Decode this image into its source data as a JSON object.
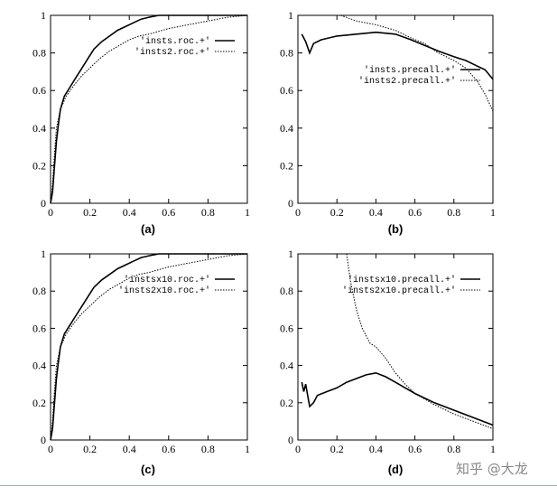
{
  "chart_data": [
    {
      "type": "line",
      "panel_label": "(a)",
      "xlim": [
        0,
        1
      ],
      "ylim": [
        0,
        1
      ],
      "xticks": [
        "0",
        "0.2",
        "0.4",
        "0.6",
        "0.8",
        "1"
      ],
      "yticks": [
        "0",
        "0.2",
        "0.4",
        "0.6",
        "0.8",
        "1"
      ],
      "legend_position": "top-right",
      "series": [
        {
          "name": "'insts.roc.+'",
          "style": "solid",
          "points": [
            [
              0,
              0
            ],
            [
              0.01,
              0.06
            ],
            [
              0.02,
              0.2
            ],
            [
              0.03,
              0.33
            ],
            [
              0.04,
              0.42
            ],
            [
              0.05,
              0.5
            ],
            [
              0.07,
              0.57
            ],
            [
              0.1,
              0.62
            ],
            [
              0.13,
              0.67
            ],
            [
              0.16,
              0.72
            ],
            [
              0.19,
              0.77
            ],
            [
              0.22,
              0.82
            ],
            [
              0.26,
              0.86
            ],
            [
              0.3,
              0.89
            ],
            [
              0.34,
              0.92
            ],
            [
              0.38,
              0.94
            ],
            [
              0.42,
              0.96
            ],
            [
              0.46,
              0.98
            ],
            [
              0.5,
              0.99
            ],
            [
              0.55,
              1
            ],
            [
              1,
              1
            ]
          ]
        },
        {
          "name": "'insts2.roc.+'",
          "style": "dotted",
          "points": [
            [
              0,
              0
            ],
            [
              0.01,
              0.1
            ],
            [
              0.02,
              0.27
            ],
            [
              0.03,
              0.4
            ],
            [
              0.05,
              0.5
            ],
            [
              0.08,
              0.57
            ],
            [
              0.12,
              0.63
            ],
            [
              0.16,
              0.68
            ],
            [
              0.2,
              0.72
            ],
            [
              0.25,
              0.77
            ],
            [
              0.3,
              0.81
            ],
            [
              0.35,
              0.84
            ],
            [
              0.4,
              0.87
            ],
            [
              0.45,
              0.89
            ],
            [
              0.5,
              0.9
            ],
            [
              0.6,
              0.93
            ],
            [
              0.7,
              0.95
            ],
            [
              0.8,
              0.97
            ],
            [
              0.9,
              0.99
            ],
            [
              1,
              1
            ]
          ]
        }
      ]
    },
    {
      "type": "line",
      "panel_label": "(b)",
      "xlim": [
        0,
        1
      ],
      "ylim": [
        0,
        1
      ],
      "xticks": [
        "0",
        "0.2",
        "0.4",
        "0.6",
        "0.8",
        "1"
      ],
      "yticks": [
        "0",
        "0.2",
        "0.4",
        "0.6",
        "0.8",
        "1"
      ],
      "legend_position": "center-right",
      "series": [
        {
          "name": "'insts.precall.+'",
          "style": "solid",
          "points": [
            [
              0.02,
              0.9
            ],
            [
              0.04,
              0.86
            ],
            [
              0.06,
              0.8
            ],
            [
              0.08,
              0.85
            ],
            [
              0.12,
              0.87
            ],
            [
              0.2,
              0.89
            ],
            [
              0.3,
              0.9
            ],
            [
              0.4,
              0.91
            ],
            [
              0.5,
              0.9
            ],
            [
              0.58,
              0.87
            ],
            [
              0.65,
              0.84
            ],
            [
              0.72,
              0.81
            ],
            [
              0.8,
              0.78
            ],
            [
              0.86,
              0.76
            ],
            [
              0.92,
              0.73
            ],
            [
              0.96,
              0.71
            ],
            [
              1,
              0.66
            ]
          ]
        },
        {
          "name": "'insts2.precall.+'",
          "style": "dotted",
          "points": [
            [
              0.22,
              1
            ],
            [
              0.3,
              0.97
            ],
            [
              0.4,
              0.95
            ],
            [
              0.5,
              0.92
            ],
            [
              0.58,
              0.88
            ],
            [
              0.65,
              0.85
            ],
            [
              0.72,
              0.8
            ],
            [
              0.8,
              0.76
            ],
            [
              0.86,
              0.72
            ],
            [
              0.92,
              0.65
            ],
            [
              0.96,
              0.58
            ],
            [
              1,
              0.49
            ]
          ]
        }
      ]
    },
    {
      "type": "line",
      "panel_label": "(c)",
      "xlim": [
        0,
        1
      ],
      "ylim": [
        0,
        1
      ],
      "xticks": [
        "0",
        "0.2",
        "0.4",
        "0.6",
        "0.8",
        "1"
      ],
      "yticks": [
        "0",
        "0.2",
        "0.4",
        "0.6",
        "0.8",
        "1"
      ],
      "legend_position": "top-right",
      "series": [
        {
          "name": "'instsx10.roc.+'",
          "style": "solid",
          "points": [
            [
              0,
              0
            ],
            [
              0.01,
              0.06
            ],
            [
              0.02,
              0.2
            ],
            [
              0.03,
              0.33
            ],
            [
              0.04,
              0.42
            ],
            [
              0.05,
              0.5
            ],
            [
              0.07,
              0.57
            ],
            [
              0.1,
              0.62
            ],
            [
              0.13,
              0.67
            ],
            [
              0.16,
              0.72
            ],
            [
              0.19,
              0.77
            ],
            [
              0.22,
              0.82
            ],
            [
              0.26,
              0.86
            ],
            [
              0.3,
              0.89
            ],
            [
              0.34,
              0.92
            ],
            [
              0.38,
              0.94
            ],
            [
              0.42,
              0.96
            ],
            [
              0.46,
              0.98
            ],
            [
              0.5,
              0.99
            ],
            [
              0.55,
              1
            ],
            [
              1,
              1
            ]
          ]
        },
        {
          "name": "'insts2x10.roc.+'",
          "style": "dotted",
          "points": [
            [
              0,
              0
            ],
            [
              0.01,
              0.1
            ],
            [
              0.02,
              0.27
            ],
            [
              0.03,
              0.4
            ],
            [
              0.05,
              0.5
            ],
            [
              0.08,
              0.57
            ],
            [
              0.12,
              0.63
            ],
            [
              0.16,
              0.68
            ],
            [
              0.2,
              0.72
            ],
            [
              0.25,
              0.77
            ],
            [
              0.3,
              0.81
            ],
            [
              0.35,
              0.84
            ],
            [
              0.4,
              0.87
            ],
            [
              0.45,
              0.89
            ],
            [
              0.5,
              0.9
            ],
            [
              0.6,
              0.93
            ],
            [
              0.7,
              0.95
            ],
            [
              0.8,
              0.97
            ],
            [
              0.9,
              0.99
            ],
            [
              1,
              1
            ]
          ]
        }
      ]
    },
    {
      "type": "line",
      "panel_label": "(d)",
      "xlim": [
        0,
        1
      ],
      "ylim": [
        0,
        1
      ],
      "xticks": [
        "0",
        "0.2",
        "0.4",
        "0.6",
        "0.8",
        "1"
      ],
      "yticks": [
        "0",
        "0.2",
        "0.4",
        "0.6",
        "0.8",
        "1"
      ],
      "legend_position": "top-right",
      "series": [
        {
          "name": "'instsx10.precall.+'",
          "style": "solid",
          "points": [
            [
              0.02,
              0.31
            ],
            [
              0.03,
              0.26
            ],
            [
              0.04,
              0.3
            ],
            [
              0.05,
              0.24
            ],
            [
              0.06,
              0.18
            ],
            [
              0.08,
              0.2
            ],
            [
              0.1,
              0.24
            ],
            [
              0.15,
              0.26
            ],
            [
              0.2,
              0.28
            ],
            [
              0.25,
              0.31
            ],
            [
              0.3,
              0.33
            ],
            [
              0.35,
              0.35
            ],
            [
              0.4,
              0.36
            ],
            [
              0.45,
              0.34
            ],
            [
              0.5,
              0.31
            ],
            [
              0.55,
              0.28
            ],
            [
              0.6,
              0.25
            ],
            [
              0.7,
              0.2
            ],
            [
              0.8,
              0.16
            ],
            [
              0.9,
              0.12
            ],
            [
              1,
              0.08
            ]
          ]
        },
        {
          "name": "'insts2x10.precall.+'",
          "style": "dotted",
          "points": [
            [
              0.25,
              1
            ],
            [
              0.27,
              0.85
            ],
            [
              0.3,
              0.7
            ],
            [
              0.33,
              0.6
            ],
            [
              0.37,
              0.52
            ],
            [
              0.4,
              0.5
            ],
            [
              0.45,
              0.44
            ],
            [
              0.5,
              0.36
            ],
            [
              0.55,
              0.3
            ],
            [
              0.6,
              0.25
            ],
            [
              0.7,
              0.19
            ],
            [
              0.8,
              0.14
            ],
            [
              0.9,
              0.1
            ],
            [
              1,
              0.06
            ]
          ]
        }
      ]
    }
  ],
  "watermark": "知乎 @大龙"
}
